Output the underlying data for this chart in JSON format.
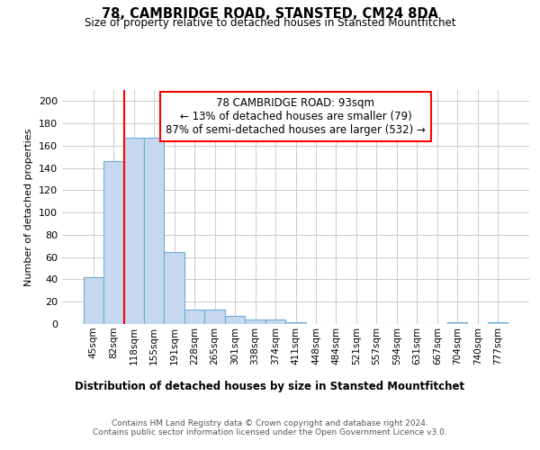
{
  "title_line1": "78, CAMBRIDGE ROAD, STANSTED, CM24 8DA",
  "title_line2": "Size of property relative to detached houses in Stansted Mountfitchet",
  "xlabel": "Distribution of detached houses by size in Stansted Mountfitchet",
  "ylabel": "Number of detached properties",
  "footer_line1": "Contains HM Land Registry data © Crown copyright and database right 2024.",
  "footer_line2": "Contains public sector information licensed under the Open Government Licence v3.0.",
  "annotation_title": "78 CAMBRIDGE ROAD: 93sqm",
  "annotation_line1": "← 13% of detached houses are smaller (79)",
  "annotation_line2": "87% of semi-detached houses are larger (532) →",
  "bar_labels": [
    "45sqm",
    "82sqm",
    "118sqm",
    "155sqm",
    "191sqm",
    "228sqm",
    "265sqm",
    "301sqm",
    "338sqm",
    "374sqm",
    "411sqm",
    "448sqm",
    "484sqm",
    "521sqm",
    "557sqm",
    "594sqm",
    "631sqm",
    "667sqm",
    "704sqm",
    "740sqm",
    "777sqm"
  ],
  "bar_values": [
    42,
    146,
    167,
    167,
    65,
    13,
    13,
    7,
    4,
    4,
    2,
    0,
    0,
    0,
    0,
    0,
    0,
    0,
    2,
    0,
    2
  ],
  "bar_color": "#c5d8f0",
  "bar_edge_color": "#6baed6",
  "red_line_x": 1.5,
  "ylim": [
    0,
    210
  ],
  "yticks": [
    0,
    20,
    40,
    60,
    80,
    100,
    120,
    140,
    160,
    180,
    200
  ],
  "annotation_box_color": "white",
  "annotation_box_edgecolor": "red",
  "red_line_color": "red",
  "bg_color": "white",
  "grid_color": "#cccccc"
}
